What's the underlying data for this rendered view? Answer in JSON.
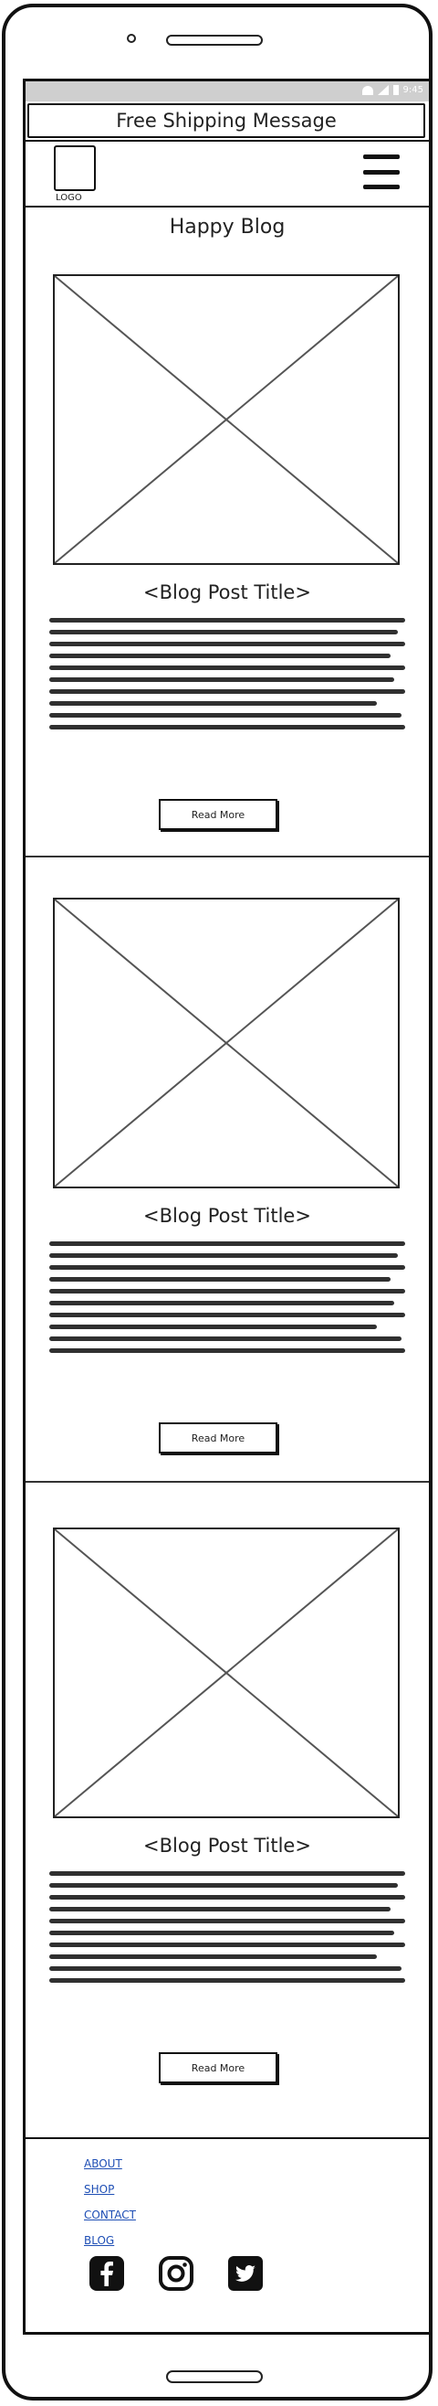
{
  "status_bar": {
    "time": "9:45"
  },
  "banner": {
    "text": "Free Shipping Message"
  },
  "header": {
    "logo_label": "LOGO"
  },
  "blog": {
    "title": "Happy Blog"
  },
  "posts": [
    {
      "title": "<Blog Post Title>",
      "button_label": "Read More"
    },
    {
      "title": "<Blog Post Title>",
      "button_label": "Read More"
    },
    {
      "title": "<Blog Post Title>",
      "button_label": "Read More"
    }
  ],
  "footer": {
    "links": [
      "ABOUT",
      "SHOP",
      "CONTACT",
      "BLOG"
    ],
    "social_icons": [
      "facebook-icon",
      "instagram-icon",
      "twitter-icon"
    ]
  }
}
